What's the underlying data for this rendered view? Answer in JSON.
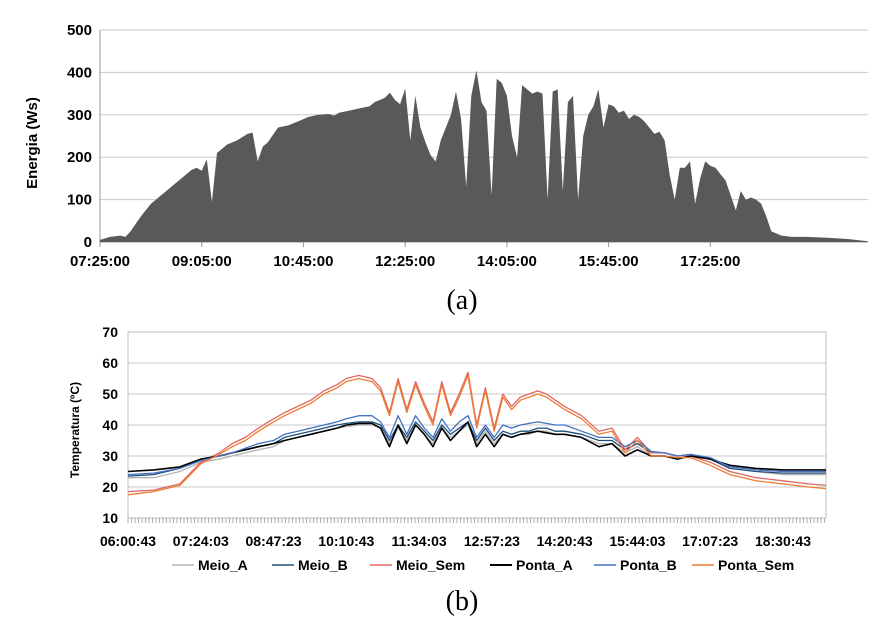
{
  "chart_data": [
    {
      "type": "area",
      "panel_label": "(a)",
      "ylabel": "Energia (Ws)",
      "xlabel": "",
      "ylim": [
        0,
        500
      ],
      "yticks": [
        0,
        100,
        200,
        300,
        400,
        500
      ],
      "xlim": [
        "07:25:00",
        "20:00:00"
      ],
      "xticks": [
        "07:25:00",
        "09:05:00",
        "10:45:00",
        "12:25:00",
        "14:05:00",
        "15:45:00",
        "17:25:00"
      ],
      "grid": true,
      "fill_color": "#595959",
      "points": [
        [
          "07:25:00",
          5
        ],
        [
          "07:35:00",
          12
        ],
        [
          "07:45:00",
          15
        ],
        [
          "07:50:00",
          12
        ],
        [
          "07:55:00",
          25
        ],
        [
          "08:05:00",
          60
        ],
        [
          "08:15:00",
          90
        ],
        [
          "08:25:00",
          110
        ],
        [
          "08:35:00",
          130
        ],
        [
          "08:45:00",
          150
        ],
        [
          "08:55:00",
          170
        ],
        [
          "09:00:00",
          175
        ],
        [
          "09:05:00",
          168
        ],
        [
          "09:10:00",
          195
        ],
        [
          "09:15:00",
          95
        ],
        [
          "09:20:00",
          210
        ],
        [
          "09:30:00",
          230
        ],
        [
          "09:40:00",
          240
        ],
        [
          "09:50:00",
          255
        ],
        [
          "09:55:00",
          258
        ],
        [
          "10:00:00",
          190
        ],
        [
          "10:05:00",
          225
        ],
        [
          "10:10:00",
          235
        ],
        [
          "10:20:00",
          270
        ],
        [
          "10:30:00",
          275
        ],
        [
          "10:40:00",
          285
        ],
        [
          "10:50:00",
          295
        ],
        [
          "11:00:00",
          300
        ],
        [
          "11:10:00",
          302
        ],
        [
          "11:15:00",
          298
        ],
        [
          "11:20:00",
          305
        ],
        [
          "11:30:00",
          310
        ],
        [
          "11:40:00",
          315
        ],
        [
          "11:50:00",
          320
        ],
        [
          "11:55:00",
          330
        ],
        [
          "12:00:00",
          335
        ],
        [
          "12:05:00",
          340
        ],
        [
          "12:10:00",
          352
        ],
        [
          "12:15:00",
          335
        ],
        [
          "12:20:00",
          325
        ],
        [
          "12:25:00",
          362
        ],
        [
          "12:30:00",
          240
        ],
        [
          "12:35:00",
          345
        ],
        [
          "12:40:00",
          270
        ],
        [
          "12:45:00",
          235
        ],
        [
          "12:50:00",
          205
        ],
        [
          "12:55:00",
          190
        ],
        [
          "13:00:00",
          240
        ],
        [
          "13:05:00",
          270
        ],
        [
          "13:10:00",
          300
        ],
        [
          "13:15:00",
          355
        ],
        [
          "13:20:00",
          290
        ],
        [
          "13:25:00",
          130
        ],
        [
          "13:30:00",
          345
        ],
        [
          "13:35:00",
          405
        ],
        [
          "13:40:00",
          330
        ],
        [
          "13:45:00",
          310
        ],
        [
          "13:50:00",
          110
        ],
        [
          "13:55:00",
          385
        ],
        [
          "14:00:00",
          375
        ],
        [
          "14:05:00",
          345
        ],
        [
          "14:10:00",
          250
        ],
        [
          "14:15:00",
          200
        ],
        [
          "14:20:00",
          370
        ],
        [
          "14:25:00",
          360
        ],
        [
          "14:30:00",
          350
        ],
        [
          "14:35:00",
          355
        ],
        [
          "14:40:00",
          350
        ],
        [
          "14:45:00",
          100
        ],
        [
          "14:50:00",
          355
        ],
        [
          "14:55:00",
          360
        ],
        [
          "15:00:00",
          120
        ],
        [
          "15:05:00",
          330
        ],
        [
          "15:10:00",
          345
        ],
        [
          "15:15:00",
          100
        ],
        [
          "15:20:00",
          250
        ],
        [
          "15:25:00",
          300
        ],
        [
          "15:30:00",
          320
        ],
        [
          "15:35:00",
          360
        ],
        [
          "15:40:00",
          270
        ],
        [
          "15:45:00",
          325
        ],
        [
          "15:50:00",
          320
        ],
        [
          "15:55:00",
          305
        ],
        [
          "16:00:00",
          310
        ],
        [
          "16:05:00",
          290
        ],
        [
          "16:10:00",
          300
        ],
        [
          "16:15:00",
          295
        ],
        [
          "16:20:00",
          285
        ],
        [
          "16:25:00",
          270
        ],
        [
          "16:30:00",
          255
        ],
        [
          "16:35:00",
          260
        ],
        [
          "16:40:00",
          240
        ],
        [
          "16:45:00",
          160
        ],
        [
          "16:50:00",
          100
        ],
        [
          "16:55:00",
          175
        ],
        [
          "17:00:00",
          175
        ],
        [
          "17:05:00",
          190
        ],
        [
          "17:10:00",
          90
        ],
        [
          "17:15:00",
          150
        ],
        [
          "17:20:00",
          190
        ],
        [
          "17:25:00",
          180
        ],
        [
          "17:30:00",
          175
        ],
        [
          "17:35:00",
          160
        ],
        [
          "17:40:00",
          145
        ],
        [
          "17:45:00",
          110
        ],
        [
          "17:50:00",
          75
        ],
        [
          "17:55:00",
          120
        ],
        [
          "18:00:00",
          100
        ],
        [
          "18:05:00",
          105
        ],
        [
          "18:10:00",
          100
        ],
        [
          "18:15:00",
          90
        ],
        [
          "18:20:00",
          60
        ],
        [
          "18:25:00",
          25
        ],
        [
          "18:35:00",
          15
        ],
        [
          "18:45:00",
          12
        ],
        [
          "19:00:00",
          12
        ],
        [
          "19:20:00",
          10
        ],
        [
          "19:40:00",
          7
        ],
        [
          "20:00:00",
          2
        ]
      ]
    },
    {
      "type": "line",
      "panel_label": "(b)",
      "ylabel": "Temperatura (ºC)",
      "xlabel": "",
      "ylim": [
        10,
        70
      ],
      "yticks": [
        10,
        20,
        30,
        40,
        50,
        60,
        70
      ],
      "xlim": [
        "06:00:43",
        "19:20:00"
      ],
      "xticks": [
        "06:00:43",
        "07:24:03",
        "08:47:23",
        "10:10:43",
        "11:34:03",
        "12:57:23",
        "14:20:43",
        "15:44:03",
        "17:07:23",
        "18:30:43"
      ],
      "grid": true,
      "legend_position": "bottom",
      "x": [
        "06:00:43",
        "06:30:00",
        "07:00:00",
        "07:24:03",
        "07:45:00",
        "08:00:00",
        "08:15:00",
        "08:30:00",
        "08:47:23",
        "09:00:00",
        "09:15:00",
        "09:30:00",
        "09:45:00",
        "10:00:00",
        "10:10:43",
        "10:25:00",
        "10:40:00",
        "10:50:00",
        "11:00:00",
        "11:10:00",
        "11:20:00",
        "11:30:00",
        "11:40:00",
        "11:50:00",
        "12:00:00",
        "12:10:00",
        "12:20:00",
        "12:30:00",
        "12:40:00",
        "12:50:00",
        "13:00:00",
        "13:10:00",
        "13:20:00",
        "13:30:00",
        "13:40:00",
        "13:50:00",
        "14:00:00",
        "14:10:00",
        "14:20:43",
        "14:40:00",
        "15:00:00",
        "15:15:00",
        "15:30:00",
        "15:44:03",
        "16:00:00",
        "16:15:00",
        "16:30:00",
        "16:45:00",
        "17:07:23",
        "17:30:00",
        "18:00:00",
        "18:30:43",
        "19:00:00",
        "19:20:00"
      ],
      "series": [
        {
          "name": "Meio_A",
          "color": "#b3b3b3",
          "values": [
            23,
            23,
            25,
            28,
            29,
            30,
            31,
            32,
            33,
            35,
            36,
            37,
            38,
            39,
            39.5,
            40,
            40,
            39,
            34,
            39,
            35,
            40,
            37,
            34,
            39,
            36,
            38,
            40,
            34,
            38,
            34,
            37,
            36,
            37,
            37,
            38,
            38,
            37,
            37,
            36,
            34,
            34,
            31,
            33,
            30,
            30,
            29,
            30,
            29,
            26,
            25,
            24,
            24,
            24
          ]
        },
        {
          "name": "Meio_B",
          "color": "#1f4e79",
          "values": [
            23.5,
            24,
            26,
            29,
            30,
            31,
            32,
            33,
            34,
            36,
            37,
            38,
            39,
            40,
            40.5,
            41,
            41,
            40,
            35,
            40,
            36,
            41,
            38,
            35,
            40,
            37,
            39,
            41,
            35,
            39,
            35,
            38,
            37,
            38,
            38,
            39,
            39,
            38,
            38,
            37,
            35,
            35,
            32,
            34,
            31,
            31,
            30,
            30.5,
            29,
            26,
            25,
            24.5,
            24.5,
            24.5
          ]
        },
        {
          "name": "Meio_Sem",
          "color": "#e06666",
          "values": [
            18.5,
            19,
            21,
            28,
            31,
            34,
            36,
            39,
            42,
            44,
            46,
            48,
            51,
            53,
            55,
            56,
            55,
            52,
            44,
            55,
            45,
            54,
            47,
            41,
            54,
            44,
            50,
            57,
            40,
            52,
            39,
            50,
            46,
            49,
            50,
            51,
            50,
            48,
            46,
            43,
            38,
            39,
            32,
            36,
            31,
            31,
            30,
            30,
            28,
            25,
            23,
            22,
            21,
            20.5
          ]
        },
        {
          "name": "Ponta_A",
          "color": "#000000",
          "values": [
            25,
            25.5,
            26.5,
            29,
            30,
            31,
            32,
            33,
            34,
            35,
            36,
            37,
            38,
            39,
            40,
            40.5,
            40.5,
            39,
            33,
            40,
            34,
            40,
            37,
            33,
            39,
            35,
            38,
            41,
            33,
            37,
            33,
            37,
            36,
            37,
            37.5,
            38,
            37.5,
            37,
            37,
            36,
            33,
            34,
            30,
            32,
            30,
            30,
            29,
            30,
            29,
            27,
            26,
            25.5,
            25.5,
            25.5
          ]
        },
        {
          "name": "Ponta_B",
          "color": "#4472c4",
          "values": [
            24,
            24.5,
            26,
            28.5,
            30,
            31,
            32.5,
            34,
            35,
            37,
            38,
            39,
            40,
            41,
            42,
            43,
            43,
            41,
            36,
            43,
            37,
            43,
            39,
            36,
            42,
            38,
            41,
            43,
            36,
            40,
            36,
            40,
            39,
            40,
            40.5,
            41,
            40.5,
            40,
            40,
            38,
            36,
            36,
            33,
            35,
            31.5,
            31,
            30,
            30.5,
            29.5,
            26.5,
            25.5,
            25,
            25,
            25
          ]
        },
        {
          "name": "Ponta_Sem",
          "color": "#ed7d31",
          "values": [
            17.5,
            18.5,
            20.5,
            27.5,
            30.5,
            33,
            35,
            38,
            41,
            43,
            45,
            47,
            50,
            52,
            54,
            55,
            54,
            51,
            43,
            54,
            44,
            53,
            46,
            40,
            53,
            43,
            49,
            56,
            39,
            51,
            38,
            49,
            45,
            48,
            49,
            50,
            49,
            47,
            45,
            42,
            37,
            38,
            31,
            35,
            30,
            30,
            29.5,
            29.5,
            27,
            24,
            22,
            21,
            20,
            19.5
          ]
        }
      ]
    }
  ]
}
